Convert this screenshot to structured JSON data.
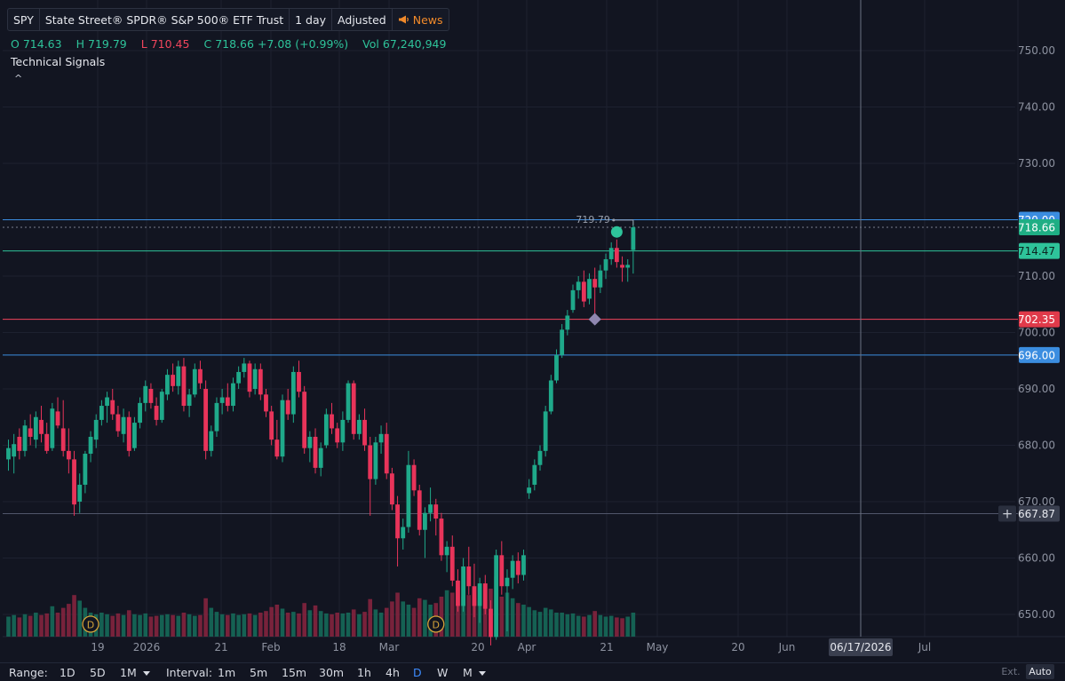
{
  "header": {
    "symbol": "SPY",
    "name": "State Street® SPDR® S&P 500® ETF Trust",
    "interval": "1 day",
    "adjustment": "Adjusted",
    "news": "News"
  },
  "ohlc": {
    "o_label": "O",
    "open": "714.63",
    "h_label": "H",
    "high": "719.79",
    "l_label": "L",
    "low": "710.45",
    "c_label": "C",
    "close": "718.66",
    "change": "+7.08 (+0.99%)",
    "vol_label": "Vol",
    "volume": "67,240,949"
  },
  "indicators": {
    "title": "Technical Signals",
    "collapse": "^"
  },
  "colors": {
    "background": "#121521",
    "up": "#1fa98a",
    "down": "#e8345a",
    "support_line": "#2ec39a",
    "resistance_line": "#f0455c",
    "level_blue": "#3b8de0"
  },
  "price_axis": {
    "ticks": [
      "750.00",
      "740.00",
      "730.00",
      "720.00",
      "710.00",
      "700.00",
      "690.00",
      "680.00",
      "670.00",
      "660.00",
      "650.00"
    ]
  },
  "price_labels": {
    "hidden_level": "720.00",
    "last_price": "718.66",
    "level_green": "714.47",
    "level_red": "702.35",
    "level_blue": "696.00",
    "crosshair": "667.87"
  },
  "annotations": {
    "high_marker": "719.79",
    "dividend_label": "D"
  },
  "time_axis": {
    "labels": [
      "19",
      "2026",
      "21",
      "Feb",
      "18",
      "Mar",
      "20",
      "Apr",
      "21",
      "May",
      "20",
      "Jun",
      "Jul"
    ],
    "crosshair_date": "06/17/2026"
  },
  "bottom": {
    "range_label": "Range:",
    "ranges": [
      "1D",
      "5D",
      "1M"
    ],
    "interval_label": "Interval:",
    "intervals": [
      "1m",
      "5m",
      "15m",
      "30m",
      "1h",
      "4h",
      "D",
      "W",
      "M"
    ],
    "active_interval": "D",
    "ext": "Ext.",
    "auto": "Auto"
  },
  "chart_data": {
    "type": "candlestick",
    "series_name": "SPY",
    "price_range": [
      645,
      757
    ],
    "levels": [
      {
        "price": 720.0,
        "color": "#3b8de0"
      },
      {
        "price": 718.66,
        "color": "#2ec39a"
      },
      {
        "price": 714.47,
        "color": "#2ec39a"
      },
      {
        "price": 702.35,
        "color": "#f0455c"
      },
      {
        "price": 696.0,
        "color": "#3b8de0"
      },
      {
        "price": 667.87,
        "color": "#4a5060"
      }
    ],
    "candles": [
      {
        "o": 677.5,
        "h": 681.0,
        "l": 675.5,
        "c": 679.5,
        "v": 0.25
      },
      {
        "o": 678.0,
        "h": 682.0,
        "l": 675.0,
        "c": 680.2,
        "v": 0.27
      },
      {
        "o": 681.5,
        "h": 683.0,
        "l": 677.5,
        "c": 679.0,
        "v": 0.24
      },
      {
        "o": 679.0,
        "h": 684.5,
        "l": 678.0,
        "c": 683.5,
        "v": 0.28
      },
      {
        "o": 683.0,
        "h": 685.5,
        "l": 680.0,
        "c": 681.5,
        "v": 0.26
      },
      {
        "o": 681.0,
        "h": 686.0,
        "l": 679.5,
        "c": 685.0,
        "v": 0.3
      },
      {
        "o": 684.5,
        "h": 687.0,
        "l": 680.5,
        "c": 682.0,
        "v": 0.27
      },
      {
        "o": 682.0,
        "h": 684.0,
        "l": 678.5,
        "c": 679.0,
        "v": 0.29
      },
      {
        "o": 679.5,
        "h": 687.5,
        "l": 679.0,
        "c": 686.5,
        "v": 0.38
      },
      {
        "o": 686.0,
        "h": 688.5,
        "l": 683.0,
        "c": 683.5,
        "v": 0.3
      },
      {
        "o": 683.0,
        "h": 688.0,
        "l": 678.0,
        "c": 679.0,
        "v": 0.36
      },
      {
        "o": 679.0,
        "h": 683.0,
        "l": 675.0,
        "c": 677.5,
        "v": 0.41
      },
      {
        "o": 677.5,
        "h": 679.0,
        "l": 667.5,
        "c": 669.5,
        "v": 0.52
      },
      {
        "o": 670.0,
        "h": 675.0,
        "l": 668.0,
        "c": 673.0,
        "v": 0.45
      },
      {
        "o": 673.0,
        "h": 679.0,
        "l": 671.5,
        "c": 678.5,
        "v": 0.36
      },
      {
        "o": 678.5,
        "h": 682.5,
        "l": 677.0,
        "c": 681.5,
        "v": 0.3
      },
      {
        "o": 681.0,
        "h": 685.5,
        "l": 679.5,
        "c": 684.5,
        "v": 0.28
      },
      {
        "o": 684.5,
        "h": 688.0,
        "l": 683.5,
        "c": 687.0,
        "v": 0.3
      },
      {
        "o": 687.0,
        "h": 689.5,
        "l": 684.0,
        "c": 688.5,
        "v": 0.28
      },
      {
        "o": 688.0,
        "h": 690.0,
        "l": 684.5,
        "c": 685.5,
        "v": 0.26
      },
      {
        "o": 685.5,
        "h": 687.0,
        "l": 681.5,
        "c": 682.5,
        "v": 0.29
      },
      {
        "o": 682.0,
        "h": 686.5,
        "l": 680.5,
        "c": 685.0,
        "v": 0.27
      },
      {
        "o": 685.0,
        "h": 686.0,
        "l": 678.0,
        "c": 679.0,
        "v": 0.33
      },
      {
        "o": 679.5,
        "h": 685.0,
        "l": 679.0,
        "c": 684.0,
        "v": 0.28
      },
      {
        "o": 684.0,
        "h": 688.5,
        "l": 683.0,
        "c": 687.5,
        "v": 0.27
      },
      {
        "o": 687.5,
        "h": 691.5,
        "l": 686.0,
        "c": 690.5,
        "v": 0.29
      },
      {
        "o": 690.0,
        "h": 691.0,
        "l": 686.5,
        "c": 687.5,
        "v": 0.25
      },
      {
        "o": 687.0,
        "h": 688.5,
        "l": 683.5,
        "c": 684.5,
        "v": 0.26
      },
      {
        "o": 684.5,
        "h": 690.0,
        "l": 684.0,
        "c": 689.5,
        "v": 0.27
      },
      {
        "o": 689.0,
        "h": 693.5,
        "l": 688.0,
        "c": 692.5,
        "v": 0.28
      },
      {
        "o": 692.5,
        "h": 694.5,
        "l": 689.5,
        "c": 690.5,
        "v": 0.27
      },
      {
        "o": 690.5,
        "h": 695.0,
        "l": 689.0,
        "c": 694.0,
        "v": 0.26
      },
      {
        "o": 694.0,
        "h": 695.5,
        "l": 686.0,
        "c": 687.0,
        "v": 0.3
      },
      {
        "o": 687.0,
        "h": 690.0,
        "l": 685.0,
        "c": 689.0,
        "v": 0.28
      },
      {
        "o": 689.0,
        "h": 694.5,
        "l": 688.5,
        "c": 693.5,
        "v": 0.26
      },
      {
        "o": 693.5,
        "h": 695.0,
        "l": 690.0,
        "c": 691.0,
        "v": 0.27
      },
      {
        "o": 690.0,
        "h": 691.5,
        "l": 677.5,
        "c": 679.0,
        "v": 0.48
      },
      {
        "o": 679.0,
        "h": 683.5,
        "l": 678.0,
        "c": 682.5,
        "v": 0.36
      },
      {
        "o": 682.5,
        "h": 688.5,
        "l": 681.5,
        "c": 687.5,
        "v": 0.31
      },
      {
        "o": 687.5,
        "h": 690.0,
        "l": 685.5,
        "c": 688.5,
        "v": 0.28
      },
      {
        "o": 688.5,
        "h": 691.0,
        "l": 686.0,
        "c": 687.0,
        "v": 0.27
      },
      {
        "o": 687.0,
        "h": 692.0,
        "l": 686.0,
        "c": 691.0,
        "v": 0.29
      },
      {
        "o": 691.0,
        "h": 694.0,
        "l": 690.0,
        "c": 693.0,
        "v": 0.27
      },
      {
        "o": 693.0,
        "h": 695.5,
        "l": 692.0,
        "c": 694.5,
        "v": 0.28
      },
      {
        "o": 694.5,
        "h": 695.0,
        "l": 688.5,
        "c": 689.5,
        "v": 0.29
      },
      {
        "o": 690.0,
        "h": 694.5,
        "l": 689.0,
        "c": 693.5,
        "v": 0.27
      },
      {
        "o": 693.5,
        "h": 694.5,
        "l": 688.0,
        "c": 689.0,
        "v": 0.3
      },
      {
        "o": 689.0,
        "h": 690.0,
        "l": 685.0,
        "c": 686.0,
        "v": 0.32
      },
      {
        "o": 686.0,
        "h": 687.0,
        "l": 680.0,
        "c": 681.0,
        "v": 0.37
      },
      {
        "o": 681.0,
        "h": 684.5,
        "l": 677.5,
        "c": 678.0,
        "v": 0.4
      },
      {
        "o": 678.0,
        "h": 689.0,
        "l": 677.0,
        "c": 688.0,
        "v": 0.35
      },
      {
        "o": 688.0,
        "h": 690.0,
        "l": 684.5,
        "c": 685.5,
        "v": 0.3
      },
      {
        "o": 685.5,
        "h": 694.0,
        "l": 684.0,
        "c": 693.0,
        "v": 0.31
      },
      {
        "o": 693.0,
        "h": 695.0,
        "l": 688.5,
        "c": 689.5,
        "v": 0.29
      },
      {
        "o": 689.5,
        "h": 690.5,
        "l": 678.5,
        "c": 679.5,
        "v": 0.42
      },
      {
        "o": 679.5,
        "h": 682.5,
        "l": 677.0,
        "c": 681.5,
        "v": 0.33
      },
      {
        "o": 681.5,
        "h": 683.0,
        "l": 675.0,
        "c": 676.0,
        "v": 0.39
      },
      {
        "o": 676.0,
        "h": 680.5,
        "l": 674.5,
        "c": 679.5,
        "v": 0.32
      },
      {
        "o": 680.0,
        "h": 686.5,
        "l": 679.5,
        "c": 685.5,
        "v": 0.29
      },
      {
        "o": 685.5,
        "h": 687.5,
        "l": 682.0,
        "c": 683.0,
        "v": 0.28
      },
      {
        "o": 683.0,
        "h": 684.0,
        "l": 679.5,
        "c": 680.5,
        "v": 0.3
      },
      {
        "o": 680.5,
        "h": 686.0,
        "l": 679.0,
        "c": 684.5,
        "v": 0.29
      },
      {
        "o": 684.5,
        "h": 691.5,
        "l": 684.0,
        "c": 691.0,
        "v": 0.3
      },
      {
        "o": 691.0,
        "h": 691.5,
        "l": 681.0,
        "c": 682.0,
        "v": 0.34
      },
      {
        "o": 682.0,
        "h": 685.5,
        "l": 681.0,
        "c": 684.5,
        "v": 0.28
      },
      {
        "o": 684.5,
        "h": 686.5,
        "l": 679.0,
        "c": 680.0,
        "v": 0.31
      },
      {
        "o": 680.0,
        "h": 681.5,
        "l": 667.5,
        "c": 674.0,
        "v": 0.47
      },
      {
        "o": 674.0,
        "h": 681.5,
        "l": 673.0,
        "c": 680.5,
        "v": 0.34
      },
      {
        "o": 680.5,
        "h": 683.5,
        "l": 678.5,
        "c": 682.0,
        "v": 0.3
      },
      {
        "o": 682.0,
        "h": 684.0,
        "l": 674.0,
        "c": 675.0,
        "v": 0.36
      },
      {
        "o": 675.0,
        "h": 676.0,
        "l": 668.5,
        "c": 669.5,
        "v": 0.44
      },
      {
        "o": 669.5,
        "h": 671.0,
        "l": 658.5,
        "c": 663.5,
        "v": 0.55
      },
      {
        "o": 663.5,
        "h": 667.0,
        "l": 661.5,
        "c": 665.5,
        "v": 0.44
      },
      {
        "o": 665.5,
        "h": 679.0,
        "l": 664.5,
        "c": 676.5,
        "v": 0.4
      },
      {
        "o": 676.5,
        "h": 677.5,
        "l": 671.0,
        "c": 672.0,
        "v": 0.36
      },
      {
        "o": 672.0,
        "h": 673.0,
        "l": 664.0,
        "c": 665.0,
        "v": 0.48
      },
      {
        "o": 665.0,
        "h": 669.0,
        "l": 660.0,
        "c": 668.0,
        "v": 0.46
      },
      {
        "o": 668.0,
        "h": 672.5,
        "l": 666.5,
        "c": 669.5,
        "v": 0.4
      },
      {
        "o": 669.5,
        "h": 670.5,
        "l": 664.0,
        "c": 667.0,
        "v": 0.42
      },
      {
        "o": 667.0,
        "h": 668.0,
        "l": 659.5,
        "c": 660.5,
        "v": 0.5
      },
      {
        "o": 660.5,
        "h": 663.0,
        "l": 657.5,
        "c": 662.0,
        "v": 0.58
      },
      {
        "o": 662.0,
        "h": 664.0,
        "l": 655.0,
        "c": 656.0,
        "v": 0.55
      },
      {
        "o": 656.0,
        "h": 658.0,
        "l": 650.5,
        "c": 651.5,
        "v": 0.62
      },
      {
        "o": 651.5,
        "h": 660.0,
        "l": 650.5,
        "c": 658.5,
        "v": 0.5
      },
      {
        "o": 658.5,
        "h": 662.0,
        "l": 653.5,
        "c": 655.0,
        "v": 0.52
      },
      {
        "o": 655.0,
        "h": 659.0,
        "l": 649.5,
        "c": 651.5,
        "v": 0.48
      },
      {
        "o": 651.5,
        "h": 656.5,
        "l": 648.5,
        "c": 655.5,
        "v": 0.45
      },
      {
        "o": 655.5,
        "h": 657.0,
        "l": 650.0,
        "c": 651.0,
        "v": 0.47
      },
      {
        "o": 651.0,
        "h": 652.5,
        "l": 644.5,
        "c": 646.0,
        "v": 0.6
      },
      {
        "o": 646.0,
        "h": 661.5,
        "l": 645.5,
        "c": 660.5,
        "v": 0.75
      },
      {
        "o": 660.5,
        "h": 663.0,
        "l": 653.5,
        "c": 655.0,
        "v": 0.5
      },
      {
        "o": 655.0,
        "h": 658.0,
        "l": 647.0,
        "c": 656.5,
        "v": 0.55
      },
      {
        "o": 656.5,
        "h": 660.5,
        "l": 654.5,
        "c": 659.5,
        "v": 0.48
      },
      {
        "o": 659.5,
        "h": 661.0,
        "l": 655.5,
        "c": 657.0,
        "v": 0.42
      },
      {
        "o": 657.0,
        "h": 661.5,
        "l": 656.0,
        "c": 660.5,
        "v": 0.4
      },
      {
        "o": 671.5,
        "h": 674.0,
        "l": 670.5,
        "c": 672.5,
        "v": 0.37
      },
      {
        "o": 673.0,
        "h": 677.5,
        "l": 672.0,
        "c": 676.5,
        "v": 0.33
      },
      {
        "o": 676.5,
        "h": 680.0,
        "l": 675.5,
        "c": 679.0,
        "v": 0.31
      },
      {
        "o": 679.0,
        "h": 687.0,
        "l": 678.0,
        "c": 686.0,
        "v": 0.36
      },
      {
        "o": 686.0,
        "h": 692.5,
        "l": 685.5,
        "c": 691.5,
        "v": 0.34
      },
      {
        "o": 691.5,
        "h": 697.0,
        "l": 691.0,
        "c": 696.0,
        "v": 0.3
      },
      {
        "o": 696.0,
        "h": 701.5,
        "l": 695.5,
        "c": 700.5,
        "v": 0.3
      },
      {
        "o": 700.5,
        "h": 704.0,
        "l": 699.5,
        "c": 703.0,
        "v": 0.28
      },
      {
        "o": 704.0,
        "h": 708.5,
        "l": 703.5,
        "c": 707.5,
        "v": 0.29
      },
      {
        "o": 707.5,
        "h": 710.0,
        "l": 706.0,
        "c": 709.0,
        "v": 0.26
      },
      {
        "o": 709.0,
        "h": 711.0,
        "l": 704.5,
        "c": 705.5,
        "v": 0.25
      },
      {
        "o": 706.0,
        "h": 710.5,
        "l": 705.0,
        "c": 709.5,
        "v": 0.27
      },
      {
        "o": 709.5,
        "h": 711.5,
        "l": 702.5,
        "c": 708.0,
        "v": 0.32
      },
      {
        "o": 708.0,
        "h": 712.0,
        "l": 707.0,
        "c": 711.0,
        "v": 0.27
      },
      {
        "o": 711.0,
        "h": 714.0,
        "l": 709.5,
        "c": 713.0,
        "v": 0.25
      },
      {
        "o": 713.0,
        "h": 716.0,
        "l": 712.0,
        "c": 715.0,
        "v": 0.26
      },
      {
        "o": 715.0,
        "h": 716.5,
        "l": 711.5,
        "c": 712.5,
        "v": 0.24
      },
      {
        "o": 712.0,
        "h": 713.5,
        "l": 709.0,
        "c": 711.5,
        "v": 0.23
      },
      {
        "o": 711.5,
        "h": 713.0,
        "l": 709.0,
        "c": 712.0,
        "v": 0.25
      },
      {
        "o": 714.63,
        "h": 719.79,
        "l": 710.45,
        "c": 718.66,
        "v": 0.3
      }
    ],
    "signals": [
      {
        "candle": 111,
        "price": 718.0,
        "kind": "bullish-dot"
      },
      {
        "candle": 107,
        "price": 702.35,
        "kind": "diamond"
      }
    ],
    "dividends": [
      {
        "candle": 15
      },
      {
        "candle": 78
      }
    ]
  }
}
